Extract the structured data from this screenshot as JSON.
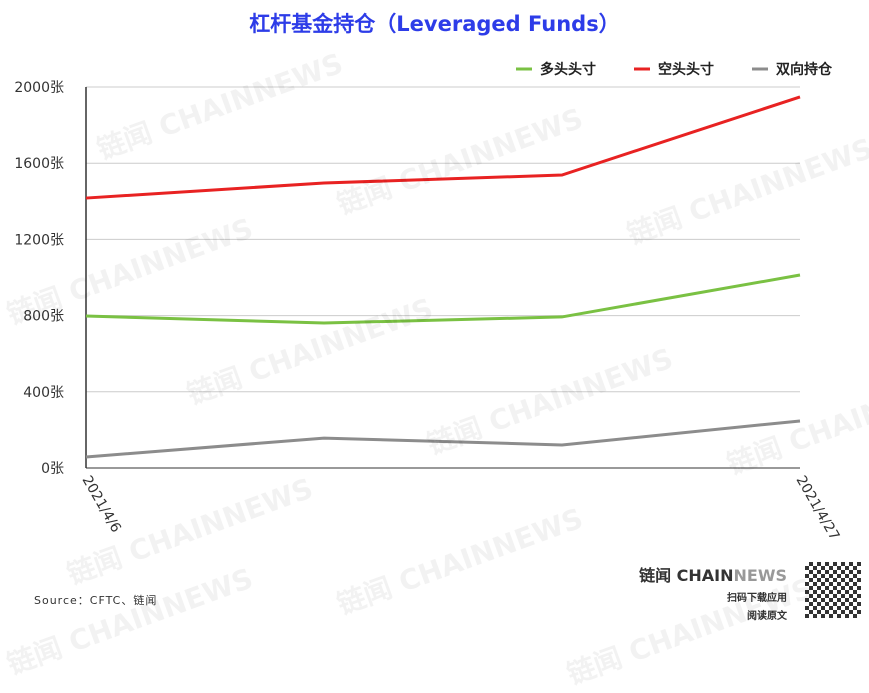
{
  "chart_data": {
    "type": "line",
    "title": "杠杆基金持仓（Leveraged Funds）",
    "categories": [
      "2021/4/6",
      "",
      "",
      "2021/4/27"
    ],
    "ylim": [
      0,
      2000
    ],
    "yticks": [
      "0张",
      "400张",
      "800张",
      "1200张",
      "1600张",
      "2000张"
    ],
    "grid": true,
    "legend": "top-right",
    "series": [
      {
        "name": "多头头寸",
        "color": "#7ac143",
        "values": [
          798,
          761,
          793,
          1013
        ]
      },
      {
        "name": "空头头寸",
        "color": "#e82222",
        "values": [
          1417,
          1496,
          1538,
          1948
        ]
      },
      {
        "name": "双向持仓",
        "color": "#8c8c8c",
        "values": [
          58,
          157,
          121,
          247
        ]
      }
    ]
  },
  "source": "Source：CFTC、链闻",
  "brand": {
    "name_cn": "链闻 CHAIN",
    "name_en": "NEWS",
    "line1": "扫码下载应用",
    "line2": "阅读原文"
  },
  "watermark": "链闻 CHAINNEWS"
}
